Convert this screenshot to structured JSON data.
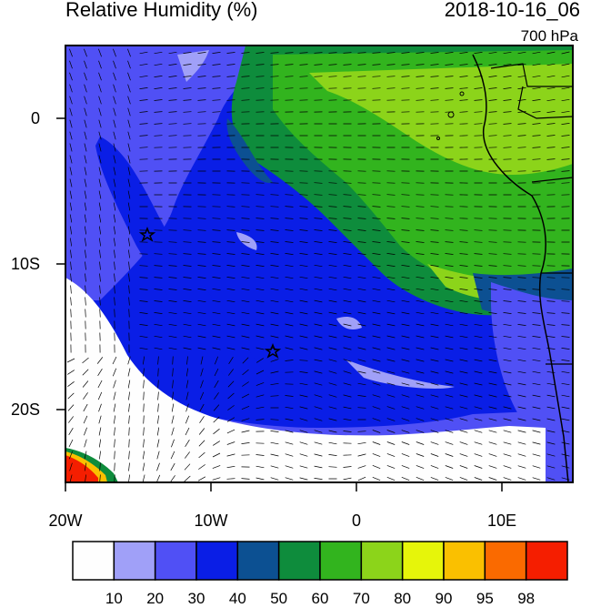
{
  "title": "Relative Humidity (%)",
  "datetime": "2018-10-16_06",
  "level": "700 hPa",
  "lat_labels": [
    "0",
    "10S",
    "20S"
  ],
  "lon_labels": [
    "20W",
    "10W",
    "0",
    "10E"
  ],
  "colorbar": {
    "labels": [
      "10",
      "20",
      "30",
      "40",
      "50",
      "60",
      "70",
      "80",
      "90",
      "95",
      "98"
    ],
    "colors": [
      "#fefefe",
      "#a0a0f8",
      "#5050f5",
      "#0a1ee6",
      "#0c5092",
      "#0e8c3c",
      "#32b41e",
      "#8cd41a",
      "#e6f50a",
      "#fac000",
      "#fa6a00",
      "#f51e00"
    ]
  },
  "markers": [
    "star-marker",
    "star-marker"
  ]
}
